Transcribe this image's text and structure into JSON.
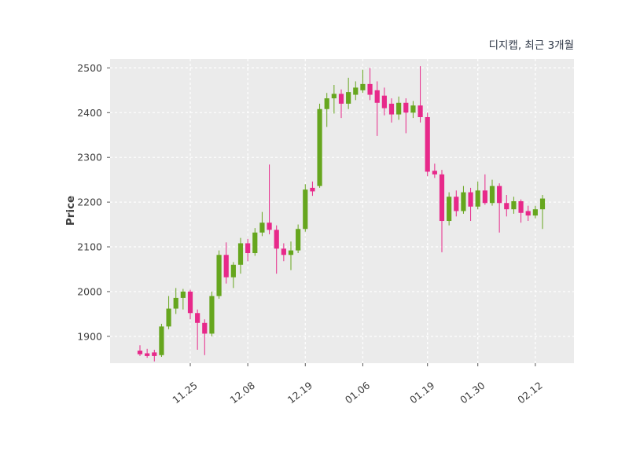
{
  "chart_data": {
    "type": "candlestick",
    "title": "디지캡, 최근 3개월",
    "ylabel": "Price",
    "ylim": [
      1840,
      2520
    ],
    "yticks": [
      1900,
      2000,
      2100,
      2200,
      2300,
      2400,
      2500
    ],
    "xtick_labels": [
      "11.25",
      "12.08",
      "12.19",
      "01.06",
      "01.19",
      "01.30",
      "02.12"
    ],
    "xtick_indices": [
      7,
      15,
      23,
      31,
      40,
      47,
      55
    ],
    "up_color": "#66A61E",
    "down_color": "#E7298A",
    "panel_bg": "#EBEBEB",
    "grid_color": "#FFFFFF",
    "tick_text_color": "#3d3d3d",
    "legend": "none",
    "grid": "dashed",
    "candles": [
      [
        1868,
        1880,
        1856,
        1860
      ],
      [
        1862,
        1872,
        1852,
        1856
      ],
      [
        1864,
        1870,
        1844,
        1856
      ],
      [
        1858,
        1928,
        1854,
        1922
      ],
      [
        1922,
        1990,
        1916,
        1962
      ],
      [
        1962,
        2008,
        1950,
        1986
      ],
      [
        1986,
        2006,
        1960,
        2000
      ],
      [
        2000,
        2004,
        1938,
        1952
      ],
      [
        1952,
        1960,
        1870,
        1930
      ],
      [
        1930,
        1938,
        1858,
        1906
      ],
      [
        1906,
        2000,
        1900,
        1990
      ],
      [
        1990,
        2092,
        1984,
        2082
      ],
      [
        2082,
        2110,
        2018,
        2032
      ],
      [
        2032,
        2066,
        2008,
        2060
      ],
      [
        2060,
        2120,
        2040,
        2108
      ],
      [
        2108,
        2118,
        2068,
        2086
      ],
      [
        2086,
        2142,
        2080,
        2132
      ],
      [
        2132,
        2178,
        2124,
        2154
      ],
      [
        2154,
        2284,
        2128,
        2138
      ],
      [
        2138,
        2148,
        2040,
        2096
      ],
      [
        2096,
        2108,
        2068,
        2082
      ],
      [
        2082,
        2112,
        2048,
        2092
      ],
      [
        2092,
        2150,
        2086,
        2140
      ],
      [
        2140,
        2240,
        2134,
        2228
      ],
      [
        2232,
        2246,
        2214,
        2224
      ],
      [
        2236,
        2420,
        2232,
        2408
      ],
      [
        2408,
        2444,
        2368,
        2432
      ],
      [
        2432,
        2462,
        2398,
        2442
      ],
      [
        2442,
        2452,
        2388,
        2420
      ],
      [
        2420,
        2478,
        2408,
        2446
      ],
      [
        2440,
        2470,
        2428,
        2456
      ],
      [
        2450,
        2496,
        2444,
        2464
      ],
      [
        2464,
        2500,
        2428,
        2440
      ],
      [
        2450,
        2470,
        2348,
        2422
      ],
      [
        2438,
        2456,
        2394,
        2410
      ],
      [
        2420,
        2432,
        2378,
        2396
      ],
      [
        2396,
        2436,
        2384,
        2422
      ],
      [
        2422,
        2432,
        2354,
        2400
      ],
      [
        2400,
        2426,
        2388,
        2416
      ],
      [
        2416,
        2504,
        2378,
        2390
      ],
      [
        2390,
        2400,
        2258,
        2268
      ],
      [
        2270,
        2286,
        2254,
        2262
      ],
      [
        2262,
        2272,
        2088,
        2158
      ],
      [
        2158,
        2222,
        2148,
        2212
      ],
      [
        2212,
        2226,
        2168,
        2180
      ],
      [
        2180,
        2236,
        2174,
        2222
      ],
      [
        2222,
        2232,
        2158,
        2190
      ],
      [
        2190,
        2246,
        2184,
        2226
      ],
      [
        2226,
        2262,
        2194,
        2198
      ],
      [
        2198,
        2250,
        2192,
        2236
      ],
      [
        2236,
        2242,
        2132,
        2198
      ],
      [
        2198,
        2216,
        2168,
        2184
      ],
      [
        2184,
        2212,
        2174,
        2202
      ],
      [
        2202,
        2206,
        2154,
        2176
      ],
      [
        2180,
        2192,
        2158,
        2170
      ],
      [
        2170,
        2192,
        2164,
        2184
      ],
      [
        2184,
        2216,
        2140,
        2208
      ]
    ]
  }
}
